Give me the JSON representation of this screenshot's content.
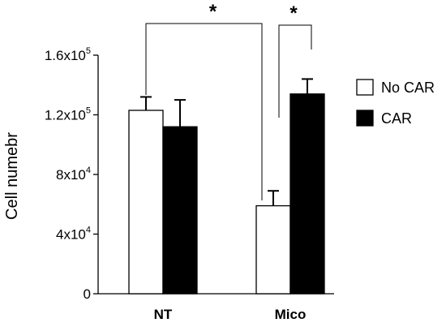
{
  "chart_data": {
    "type": "bar",
    "categories": [
      "NT",
      "Mico"
    ],
    "series": [
      {
        "name": "No CAR",
        "values": [
          123000,
          59000
        ],
        "errors": [
          9000,
          10000
        ],
        "color": "#ffffff"
      },
      {
        "name": "CAR",
        "values": [
          112000,
          134000
        ],
        "errors": [
          18000,
          10000
        ],
        "color": "#000000"
      }
    ],
    "ylabel": "Cell numebr",
    "xlabel": "",
    "ylim": [
      0,
      160000
    ],
    "yticks": [
      {
        "value": 0,
        "base": "0",
        "exp": ""
      },
      {
        "value": 40000,
        "base": "4x10",
        "exp": "4"
      },
      {
        "value": 80000,
        "base": "8x10",
        "exp": "4"
      },
      {
        "value": 120000,
        "base": "1.2x10",
        "exp": "5"
      },
      {
        "value": 160000,
        "base": "1.6x10",
        "exp": "5"
      }
    ],
    "significance": [
      {
        "label": "*",
        "from": [
          0,
          0
        ],
        "to": [
          1,
          0
        ]
      },
      {
        "label": "*",
        "from": [
          1,
          0
        ],
        "to": [
          1,
          1
        ]
      }
    ],
    "legend_position": "right",
    "grid": false
  }
}
